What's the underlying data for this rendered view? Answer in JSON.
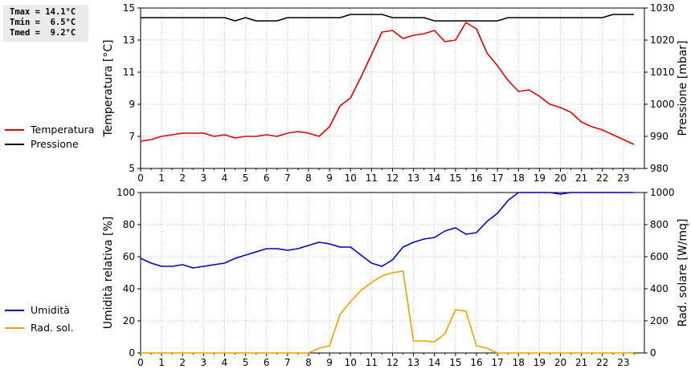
{
  "stats": {
    "tmax": "Tmax = 14.1°C",
    "tmin": "Tmin =  6.5°C",
    "tmed": "Tmed =  9.2°C"
  },
  "colors": {
    "temperature": "#dd0000",
    "pressure": "#000000",
    "humidity": "#0000bb",
    "radiation": "#f0a000"
  },
  "chart_data": [
    {
      "type": "line",
      "x_ticks": [
        "0",
        "1",
        "2",
        "3",
        "4",
        "5",
        "6",
        "7",
        "8",
        "9",
        "10",
        "11",
        "12",
        "13",
        "14",
        "15",
        "16",
        "17",
        "18",
        "19",
        "20",
        "21",
        "22",
        "23"
      ],
      "xlim": [
        0,
        24
      ],
      "ylabel": "Temperatura [°C]",
      "ylabel_right": "Pressione [mbar]",
      "ylim": [
        5,
        15
      ],
      "y_ticks": [
        "5",
        "7",
        "9",
        "11",
        "13",
        "15"
      ],
      "ylim_right": [
        980,
        1030
      ],
      "y_ticks_right": [
        "980",
        "990",
        "1000",
        "1010",
        "1020",
        "1030"
      ],
      "grid": true,
      "legend": "left",
      "series": [
        {
          "name": "Temperatura",
          "axis": "left",
          "color": "#dd0000",
          "x": [
            0,
            0.5,
            1,
            1.5,
            2,
            2.5,
            3,
            3.5,
            4,
            4.5,
            5,
            5.5,
            6,
            6.5,
            7,
            7.5,
            8,
            8.5,
            9,
            9.5,
            10,
            10.5,
            11,
            11.5,
            12,
            12.5,
            13,
            13.5,
            14,
            14.5,
            15,
            15.5,
            16,
            16.5,
            17,
            17.5,
            18,
            18.5,
            19,
            19.5,
            20,
            20.5,
            21,
            21.5,
            22,
            22.5,
            23,
            23.5
          ],
          "values": [
            6.7,
            6.8,
            7.0,
            7.1,
            7.2,
            7.2,
            7.2,
            7.0,
            7.1,
            6.9,
            7.0,
            7.0,
            7.1,
            7.0,
            7.2,
            7.3,
            7.2,
            7.0,
            7.6,
            8.9,
            9.4,
            10.7,
            12.1,
            13.5,
            13.6,
            13.1,
            13.3,
            13.4,
            13.6,
            12.9,
            13.0,
            14.1,
            13.7,
            12.2,
            11.4,
            10.5,
            9.8,
            9.9,
            9.5,
            9.0,
            8.8,
            8.5,
            7.9,
            7.6,
            7.4,
            7.1,
            6.8,
            6.5
          ]
        },
        {
          "name": "Pressione",
          "axis": "right",
          "color": "#000000",
          "x": [
            0,
            0.5,
            1,
            1.5,
            2,
            2.5,
            3,
            3.5,
            4,
            4.5,
            5,
            5.5,
            6,
            6.5,
            7,
            7.5,
            8,
            8.5,
            9,
            9.5,
            10,
            10.5,
            11,
            11.5,
            12,
            12.5,
            13,
            13.5,
            14,
            14.5,
            15,
            15.5,
            16,
            16.5,
            17,
            17.5,
            18,
            18.5,
            19,
            19.5,
            20,
            20.5,
            21,
            21.5,
            22,
            22.5,
            23,
            23.5
          ],
          "values": [
            1027,
            1027,
            1027,
            1027,
            1027,
            1027,
            1027,
            1027,
            1027,
            1026,
            1027,
            1026,
            1026,
            1026,
            1027,
            1027,
            1027,
            1027,
            1027,
            1027,
            1028,
            1028,
            1028,
            1028,
            1027,
            1027,
            1027,
            1027,
            1026,
            1026,
            1026,
            1026,
            1026,
            1026,
            1026,
            1027,
            1027,
            1027,
            1027,
            1027,
            1027,
            1027,
            1027,
            1027,
            1027,
            1028,
            1028,
            1028
          ]
        }
      ]
    },
    {
      "type": "line",
      "x_ticks": [
        "0",
        "1",
        "2",
        "3",
        "4",
        "5",
        "6",
        "7",
        "8",
        "9",
        "10",
        "11",
        "12",
        "13",
        "14",
        "15",
        "16",
        "17",
        "18",
        "19",
        "20",
        "21",
        "22",
        "23"
      ],
      "xlim": [
        0,
        24
      ],
      "ylabel": "Umidità relativa [%]",
      "ylabel_right": "Rad. solare [W/mq]",
      "ylim": [
        0,
        100
      ],
      "y_ticks": [
        "0",
        "20",
        "40",
        "60",
        "80",
        "100"
      ],
      "ylim_right": [
        0,
        1000
      ],
      "y_ticks_right": [
        "0",
        "200",
        "400",
        "600",
        "800",
        "1000"
      ],
      "grid": true,
      "legend": "left",
      "series": [
        {
          "name": "Umidità",
          "axis": "left",
          "color": "#0000bb",
          "x": [
            0,
            0.5,
            1,
            1.5,
            2,
            2.5,
            3,
            3.5,
            4,
            4.5,
            5,
            5.5,
            6,
            6.5,
            7,
            7.5,
            8,
            8.5,
            9,
            9.5,
            10,
            10.5,
            11,
            11.5,
            12,
            12.5,
            13,
            13.5,
            14,
            14.5,
            15,
            15.5,
            16,
            16.5,
            17,
            17.5,
            18,
            18.5,
            19,
            19.5,
            20,
            20.5,
            21,
            21.5,
            22,
            22.5,
            23,
            23.5
          ],
          "values": [
            59,
            56,
            54,
            54,
            55,
            53,
            54,
            55,
            56,
            59,
            61,
            63,
            65,
            65,
            64,
            65,
            67,
            69,
            68,
            66,
            66,
            61,
            56,
            54,
            58,
            66,
            69,
            71,
            72,
            76,
            78,
            74,
            75,
            82,
            87,
            95,
            100,
            100,
            100,
            100,
            99,
            100,
            100,
            100,
            100,
            100,
            100,
            100
          ]
        },
        {
          "name": "Rad. sol.",
          "axis": "right",
          "color": "#f0a000",
          "x": [
            0,
            0.5,
            1,
            1.5,
            2,
            2.5,
            3,
            3.5,
            4,
            4.5,
            5,
            5.5,
            6,
            6.5,
            7,
            7.5,
            8,
            8.5,
            9,
            9.5,
            10,
            10.5,
            11,
            11.5,
            12,
            12.5,
            13,
            13.5,
            14,
            14.5,
            15,
            15.5,
            16,
            16.5,
            17,
            17.5,
            18,
            18.5,
            19,
            19.5,
            20,
            20.5,
            21,
            21.5,
            22,
            22.5,
            23,
            23.5
          ],
          "values": [
            0,
            0,
            0,
            0,
            0,
            0,
            0,
            0,
            0,
            0,
            0,
            0,
            0,
            0,
            0,
            0,
            0,
            30,
            45,
            240,
            320,
            390,
            440,
            480,
            500,
            510,
            75,
            75,
            70,
            120,
            270,
            260,
            45,
            30,
            0,
            0,
            0,
            0,
            0,
            0,
            0,
            0,
            0,
            0,
            0,
            0,
            0,
            0
          ]
        }
      ]
    }
  ]
}
